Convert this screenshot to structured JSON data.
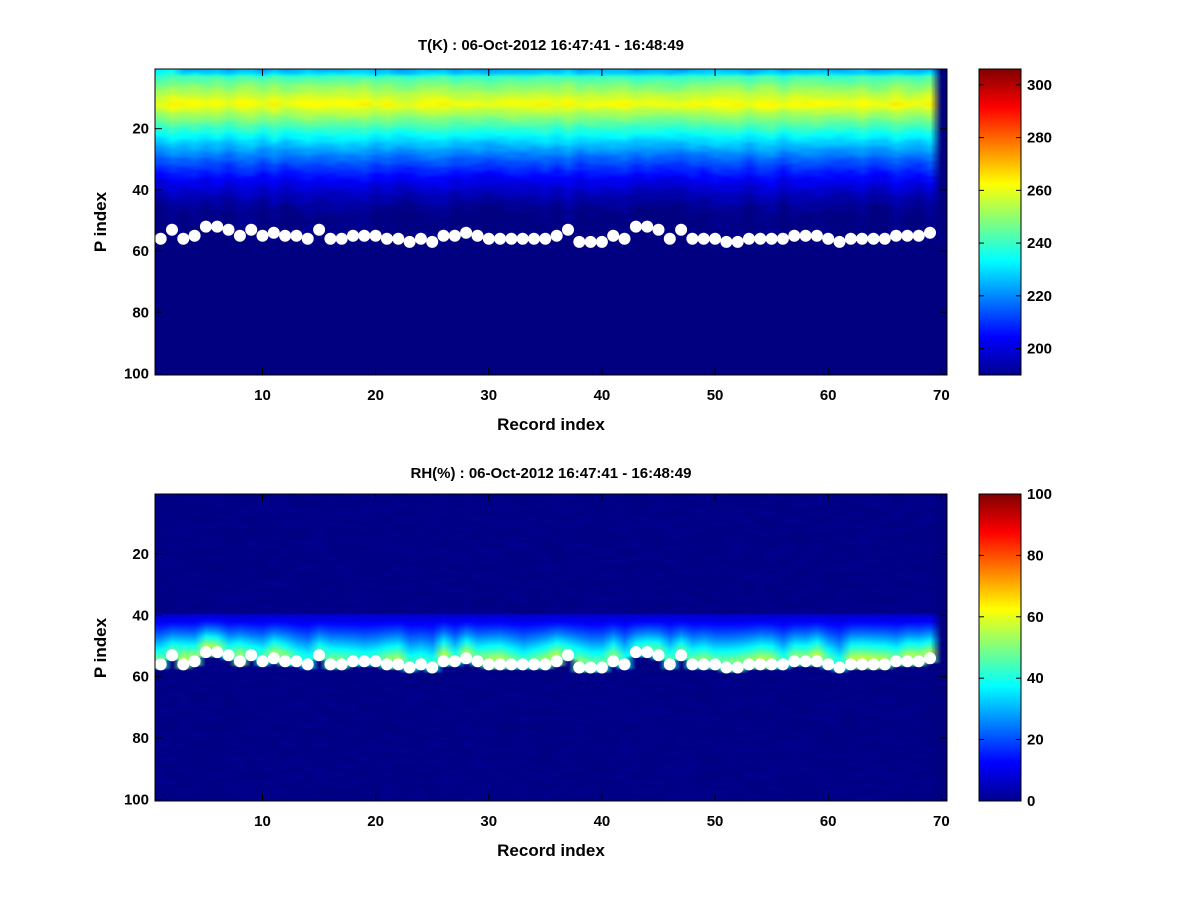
{
  "chart_data": [
    {
      "type": "heatmap",
      "title": "T(K) : 06-Oct-2012 16:47:41 - 16:48:49",
      "xlabel": "Record index",
      "ylabel": "P index",
      "xlim": [
        0.5,
        70.5
      ],
      "ylim": [
        0.5,
        100.5
      ],
      "y_reversed": true,
      "xticks": [
        10,
        20,
        30,
        40,
        50,
        60,
        70
      ],
      "yticks": [
        20,
        40,
        60,
        80,
        100
      ],
      "colorbar": {
        "range": [
          190,
          306
        ],
        "ticks": [
          200,
          220,
          240,
          260,
          280,
          300
        ],
        "colormap": "jet"
      },
      "profile_model": {
        "description": "temperature vs P index; last record column is empty (min value)",
        "top_value": 233,
        "peak_level": 12,
        "peak_value": 262,
        "decay_to_level": 50,
        "floor_value": 190
      },
      "surface_markers": {
        "x": [
          1,
          2,
          3,
          4,
          5,
          6,
          7,
          8,
          9,
          10,
          11,
          12,
          13,
          14,
          15,
          16,
          17,
          18,
          19,
          20,
          21,
          22,
          23,
          24,
          25,
          26,
          27,
          28,
          29,
          30,
          31,
          32,
          33,
          34,
          35,
          36,
          37,
          38,
          39,
          40,
          41,
          42,
          43,
          44,
          45,
          46,
          47,
          48,
          49,
          50,
          51,
          52,
          53,
          54,
          55,
          56,
          57,
          58,
          59,
          60,
          61,
          62,
          63,
          64,
          65,
          66,
          67,
          68,
          69
        ],
        "y": [
          56,
          53,
          56,
          55,
          52,
          52,
          53,
          55,
          53,
          55,
          54,
          55,
          55,
          56,
          53,
          56,
          56,
          55,
          55,
          55,
          56,
          56,
          57,
          56,
          57,
          55,
          55,
          54,
          55,
          56,
          56,
          56,
          56,
          56,
          56,
          55,
          53,
          57,
          57,
          57,
          55,
          56,
          52,
          52,
          53,
          56,
          53,
          56,
          56,
          56,
          57,
          57,
          56,
          56,
          56,
          56,
          55,
          55,
          55,
          56,
          57,
          56,
          56,
          56,
          56,
          55,
          55,
          55,
          54
        ]
      }
    },
    {
      "type": "heatmap",
      "title": "RH(%) : 06-Oct-2012 16:47:41 - 16:48:49",
      "xlabel": "Record index",
      "ylabel": "P index",
      "xlim": [
        0.5,
        70.5
      ],
      "ylim": [
        0.5,
        100.5
      ],
      "y_reversed": true,
      "xticks": [
        10,
        20,
        30,
        40,
        50,
        60,
        70
      ],
      "yticks": [
        20,
        40,
        60,
        80,
        100
      ],
      "colorbar": {
        "range": [
          0,
          100
        ],
        "ticks": [
          0,
          20,
          40,
          60,
          80,
          100
        ],
        "colormap": "jet"
      },
      "profile_model": {
        "description": "humidity near 0 aloft, rising from level 40 to a maximum just above the surface marker, 0 below",
        "onset_level": 40,
        "peak_value_range": [
          40,
          58
        ],
        "floor_value": 0
      },
      "surface_markers": {
        "x": [
          1,
          2,
          3,
          4,
          5,
          6,
          7,
          8,
          9,
          10,
          11,
          12,
          13,
          14,
          15,
          16,
          17,
          18,
          19,
          20,
          21,
          22,
          23,
          24,
          25,
          26,
          27,
          28,
          29,
          30,
          31,
          32,
          33,
          34,
          35,
          36,
          37,
          38,
          39,
          40,
          41,
          42,
          43,
          44,
          45,
          46,
          47,
          48,
          49,
          50,
          51,
          52,
          53,
          54,
          55,
          56,
          57,
          58,
          59,
          60,
          61,
          62,
          63,
          64,
          65,
          66,
          67,
          68,
          69
        ],
        "y": [
          56,
          53,
          56,
          55,
          52,
          52,
          53,
          55,
          53,
          55,
          54,
          55,
          55,
          56,
          53,
          56,
          56,
          55,
          55,
          55,
          56,
          56,
          57,
          56,
          57,
          55,
          55,
          54,
          55,
          56,
          56,
          56,
          56,
          56,
          56,
          55,
          53,
          57,
          57,
          57,
          55,
          56,
          52,
          52,
          53,
          56,
          53,
          56,
          56,
          56,
          57,
          57,
          56,
          56,
          56,
          56,
          55,
          55,
          55,
          56,
          57,
          56,
          56,
          56,
          56,
          55,
          55,
          55,
          54
        ]
      }
    }
  ]
}
